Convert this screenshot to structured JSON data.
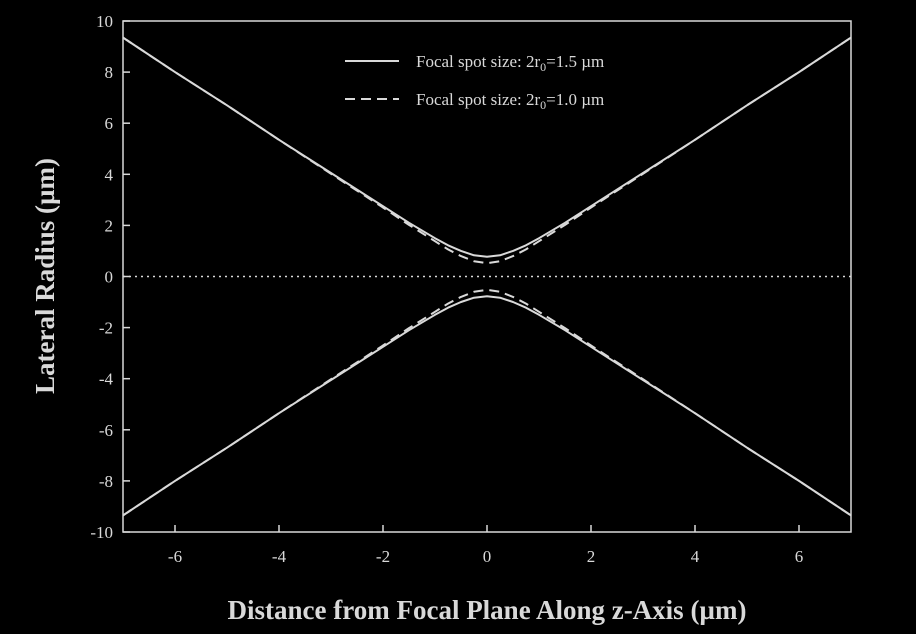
{
  "chart_data": {
    "type": "line",
    "xlabel": "Distance from Focal Plane Along z-Axis (µm)",
    "ylabel": "Lateral Radius (µm)",
    "xlim": [
      -7,
      7
    ],
    "ylim": [
      -10,
      10
    ],
    "x_ticks": [
      -6,
      -4,
      -2,
      0,
      2,
      4,
      6
    ],
    "y_ticks": [
      -10,
      -8,
      -6,
      -4,
      -2,
      0,
      2,
      4,
      6,
      8,
      10
    ],
    "legend_position": "top-center",
    "grid": false,
    "zero_line": "dotted",
    "series": [
      {
        "name": "Focal spot size: 2r0=1.5 µm",
        "legend_prefix": "Focal spot size: 2r",
        "legend_sub": "0",
        "legend_suffix": "=1.5 µm",
        "style": "solid",
        "color": "#d9d9d9",
        "x": [
          -7,
          -6,
          -5,
          -4,
          -3,
          -2,
          -1.5,
          -1,
          -0.75,
          -0.5,
          -0.25,
          0,
          0.25,
          0.5,
          0.75,
          1,
          1.5,
          2,
          3,
          4,
          5,
          6,
          7
        ],
        "upper": [
          9.35,
          8.0,
          6.7,
          5.35,
          4.05,
          2.75,
          2.1,
          1.5,
          1.22,
          1.0,
          0.83,
          0.77,
          0.83,
          1.0,
          1.22,
          1.5,
          2.1,
          2.75,
          4.05,
          5.35,
          6.7,
          8.0,
          9.35
        ],
        "lower": [
          -9.35,
          -8.0,
          -6.7,
          -5.35,
          -4.05,
          -2.75,
          -2.1,
          -1.5,
          -1.22,
          -1.0,
          -0.83,
          -0.77,
          -0.83,
          -1.0,
          -1.22,
          -1.5,
          -2.1,
          -2.75,
          -4.05,
          -5.35,
          -6.7,
          -8.0,
          -9.35
        ]
      },
      {
        "name": "Focal spot size: 2r0=1.0 µm",
        "legend_prefix": "Focal spot size: 2r",
        "legend_sub": "0",
        "legend_suffix": "=1.0 µm",
        "style": "dashed",
        "color": "#d9d9d9",
        "x": [
          -7,
          -6,
          -5,
          -4,
          -3,
          -2,
          -1.5,
          -1,
          -0.75,
          -0.5,
          -0.25,
          0,
          0.25,
          0.5,
          0.75,
          1,
          1.5,
          2,
          3,
          4,
          5,
          6,
          7
        ],
        "upper": [
          9.35,
          8.0,
          6.7,
          5.35,
          4.02,
          2.7,
          2.02,
          1.38,
          1.06,
          0.8,
          0.6,
          0.52,
          0.6,
          0.8,
          1.06,
          1.38,
          2.02,
          2.7,
          4.02,
          5.35,
          6.7,
          8.0,
          9.35
        ],
        "lower": [
          -9.35,
          -8.0,
          -6.7,
          -5.35,
          -4.02,
          -2.7,
          -2.02,
          -1.38,
          -1.06,
          -0.8,
          -0.6,
          -0.52,
          -0.6,
          -0.8,
          -1.06,
          -1.38,
          -2.02,
          -2.7,
          -4.02,
          -5.35,
          -6.7,
          -8.0,
          -9.35
        ]
      }
    ]
  }
}
